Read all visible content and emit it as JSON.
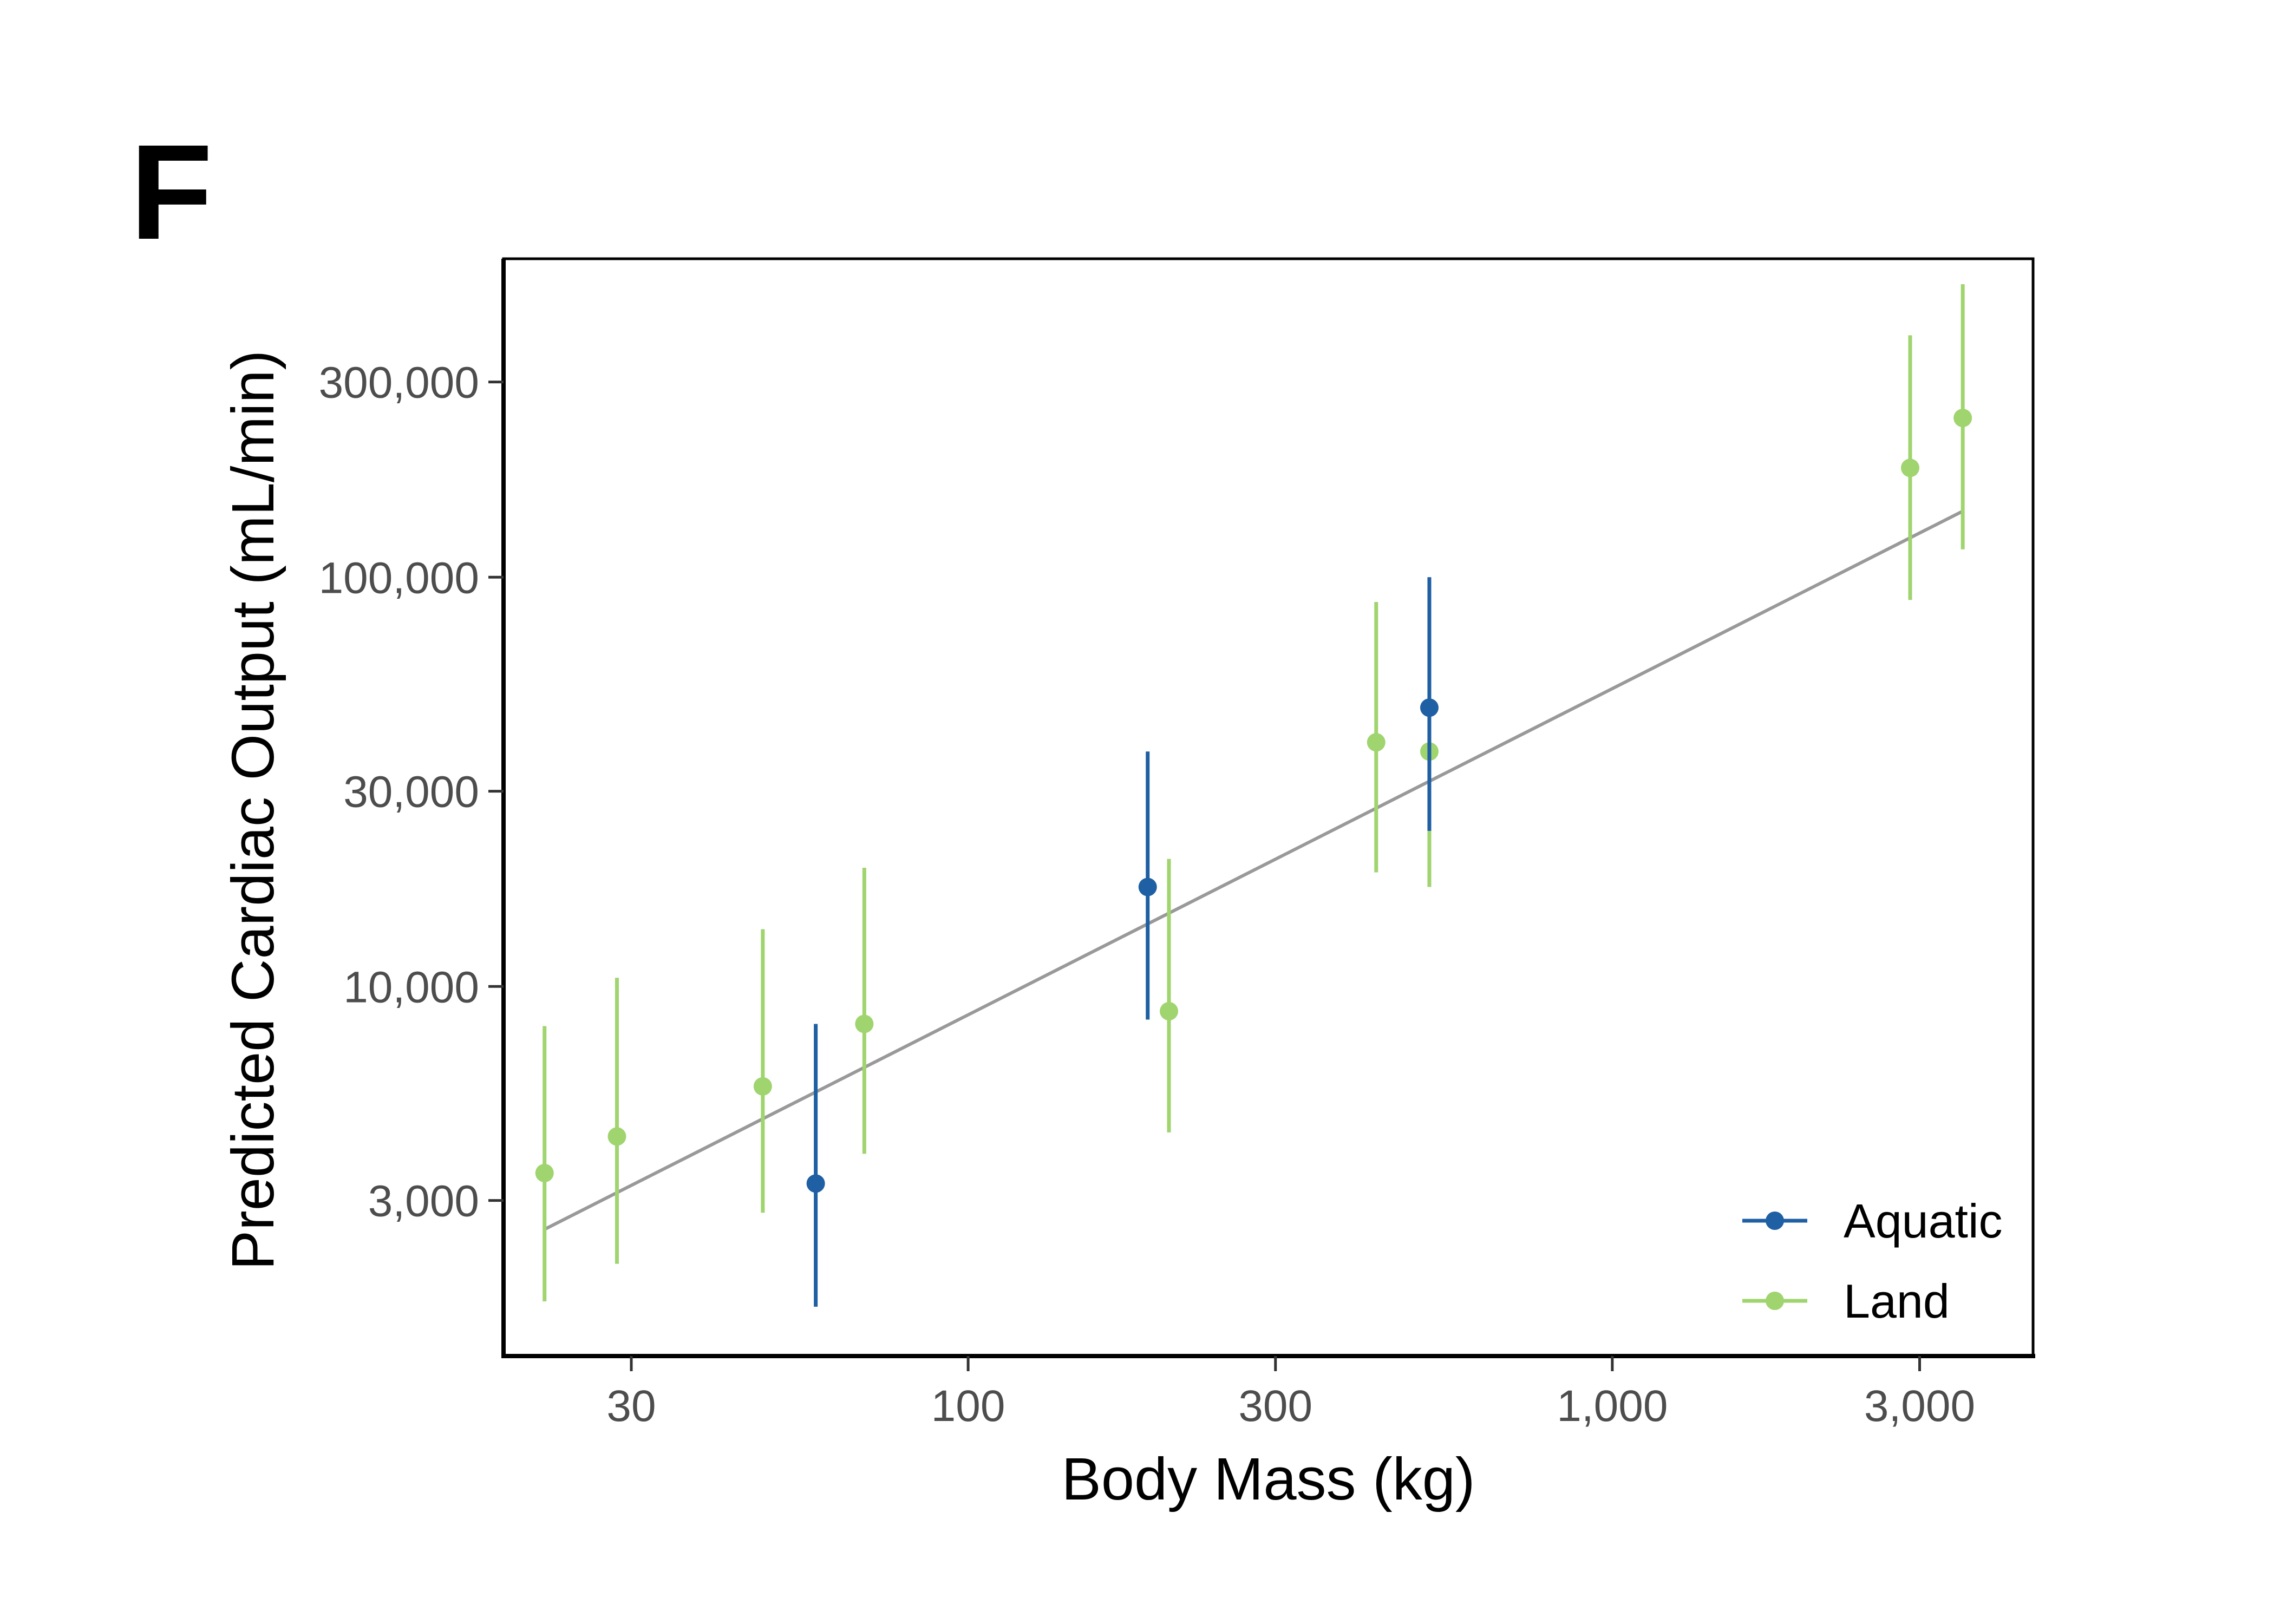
{
  "panel_label": "F",
  "colors": {
    "Aquatic": "#1f5fa3",
    "Land": "#9fd46e",
    "fit": "#999999"
  },
  "chart_data": {
    "type": "scatter",
    "title": "",
    "xlabel": "Body Mass (kg)",
    "ylabel": "Predicted Cardiac Output (mL/min)",
    "x_scale": "log",
    "y_scale": "log",
    "xlim": [
      19,
      4500
    ],
    "ylim": [
      1250,
      600000
    ],
    "x_ticks": [
      30,
      100,
      300,
      1000,
      3000
    ],
    "x_tick_labels": [
      "30",
      "100",
      "300",
      "1,000",
      "3,000"
    ],
    "y_ticks": [
      3000,
      10000,
      30000,
      100000,
      300000
    ],
    "y_tick_labels": [
      "3,000",
      "10,000",
      "30,000",
      "100,000",
      "300,000"
    ],
    "grid": false,
    "legend_position": "bottom-right",
    "series": [
      {
        "name": "Aquatic",
        "points": [
          {
            "x": 58,
            "y": 3300,
            "ylow": 1650,
            "yhigh": 8100
          },
          {
            "x": 190,
            "y": 17500,
            "ylow": 8300,
            "yhigh": 37500
          },
          {
            "x": 520,
            "y": 48000,
            "ylow": 24000,
            "yhigh": 100000
          }
        ]
      },
      {
        "name": "Land",
        "points": [
          {
            "x": 22,
            "y": 3500,
            "ylow": 1700,
            "yhigh": 8000
          },
          {
            "x": 28.5,
            "y": 4300,
            "ylow": 2100,
            "yhigh": 10500
          },
          {
            "x": 48,
            "y": 5700,
            "ylow": 2800,
            "yhigh": 13800
          },
          {
            "x": 69,
            "y": 8100,
            "ylow": 3900,
            "yhigh": 19500
          },
          {
            "x": 205,
            "y": 8700,
            "ylow": 4400,
            "yhigh": 20500
          },
          {
            "x": 430,
            "y": 39500,
            "ylow": 19000,
            "yhigh": 87000
          },
          {
            "x": 520,
            "y": 37500,
            "ylow": 17500,
            "yhigh": 74000
          },
          {
            "x": 2900,
            "y": 185000,
            "ylow": 88000,
            "yhigh": 390000
          },
          {
            "x": 3500,
            "y": 245000,
            "ylow": 117000,
            "yhigh": 520000
          }
        ]
      }
    ],
    "fit_line": {
      "x": [
        22,
        3500
      ],
      "y": [
        2550,
        145000
      ]
    }
  }
}
